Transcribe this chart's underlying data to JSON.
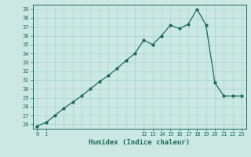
{
  "x": [
    0,
    1,
    2,
    3,
    4,
    5,
    6,
    7,
    8,
    9,
    10,
    11,
    12,
    13,
    14,
    15,
    16,
    17,
    18,
    19,
    20,
    21,
    22,
    23
  ],
  "y": [
    25.8,
    26.2,
    27.0,
    27.8,
    28.5,
    29.2,
    30.0,
    30.8,
    31.5,
    32.3,
    33.2,
    34.0,
    35.5,
    35.0,
    36.0,
    37.2,
    36.8,
    37.3,
    39.0,
    37.2,
    30.7,
    29.2,
    29.2,
    29.2
  ],
  "xlim": [
    -0.5,
    23.5
  ],
  "ylim": [
    25.5,
    39.5
  ],
  "yticks": [
    26,
    27,
    28,
    29,
    30,
    31,
    32,
    33,
    34,
    35,
    36,
    37,
    38,
    39
  ],
  "xtick_positions": [
    0,
    1,
    12,
    13,
    14,
    15,
    16,
    17,
    18,
    19,
    20,
    21,
    22,
    23
  ],
  "xtick_labels": [
    "0",
    "1",
    "12",
    "13",
    "14",
    "15",
    "16",
    "17",
    "18",
    "19",
    "20",
    "21",
    "22",
    "23"
  ],
  "xlabel": "Humidex (Indice chaleur)",
  "line_color": "#1a6b5a",
  "bg_color": "#cce8e2",
  "grid_color_major": "#9ecfca",
  "grid_color_minor": "#b8ddd8",
  "tick_color": "#1a6b5a",
  "label_color": "#1a6b5a"
}
